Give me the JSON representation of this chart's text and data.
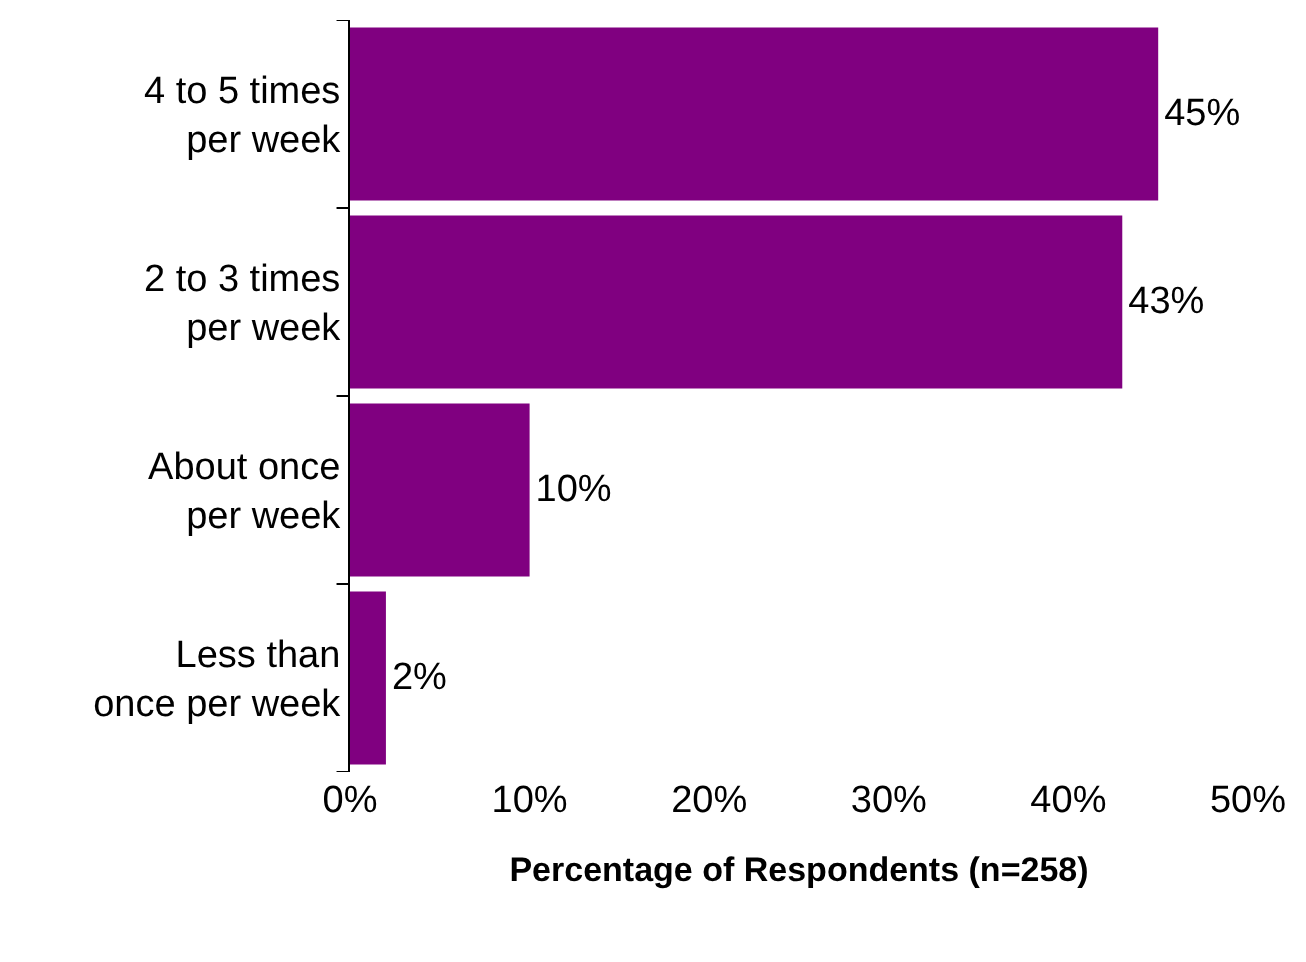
{
  "chart_data": {
    "type": "bar",
    "orientation": "horizontal",
    "xlabel": "Percentage of Respondents (n=258)",
    "categories": [
      "4 to 5 times\nper week",
      "2 to 3 times\nper week",
      "About once\nper week",
      "Less than\nonce per week"
    ],
    "values": [
      45,
      43,
      10,
      2
    ],
    "value_labels": [
      "45%",
      "43%",
      "10%",
      "2%"
    ],
    "color": "#800080",
    "xlim": [
      0,
      50
    ],
    "xticks": [
      {
        "value": 0,
        "label": "0%"
      },
      {
        "value": 10,
        "label": "10%"
      },
      {
        "value": 20,
        "label": "20%"
      },
      {
        "value": 30,
        "label": "30%"
      },
      {
        "value": 40,
        "label": "40%"
      },
      {
        "value": 50,
        "label": "50%"
      }
    ]
  }
}
